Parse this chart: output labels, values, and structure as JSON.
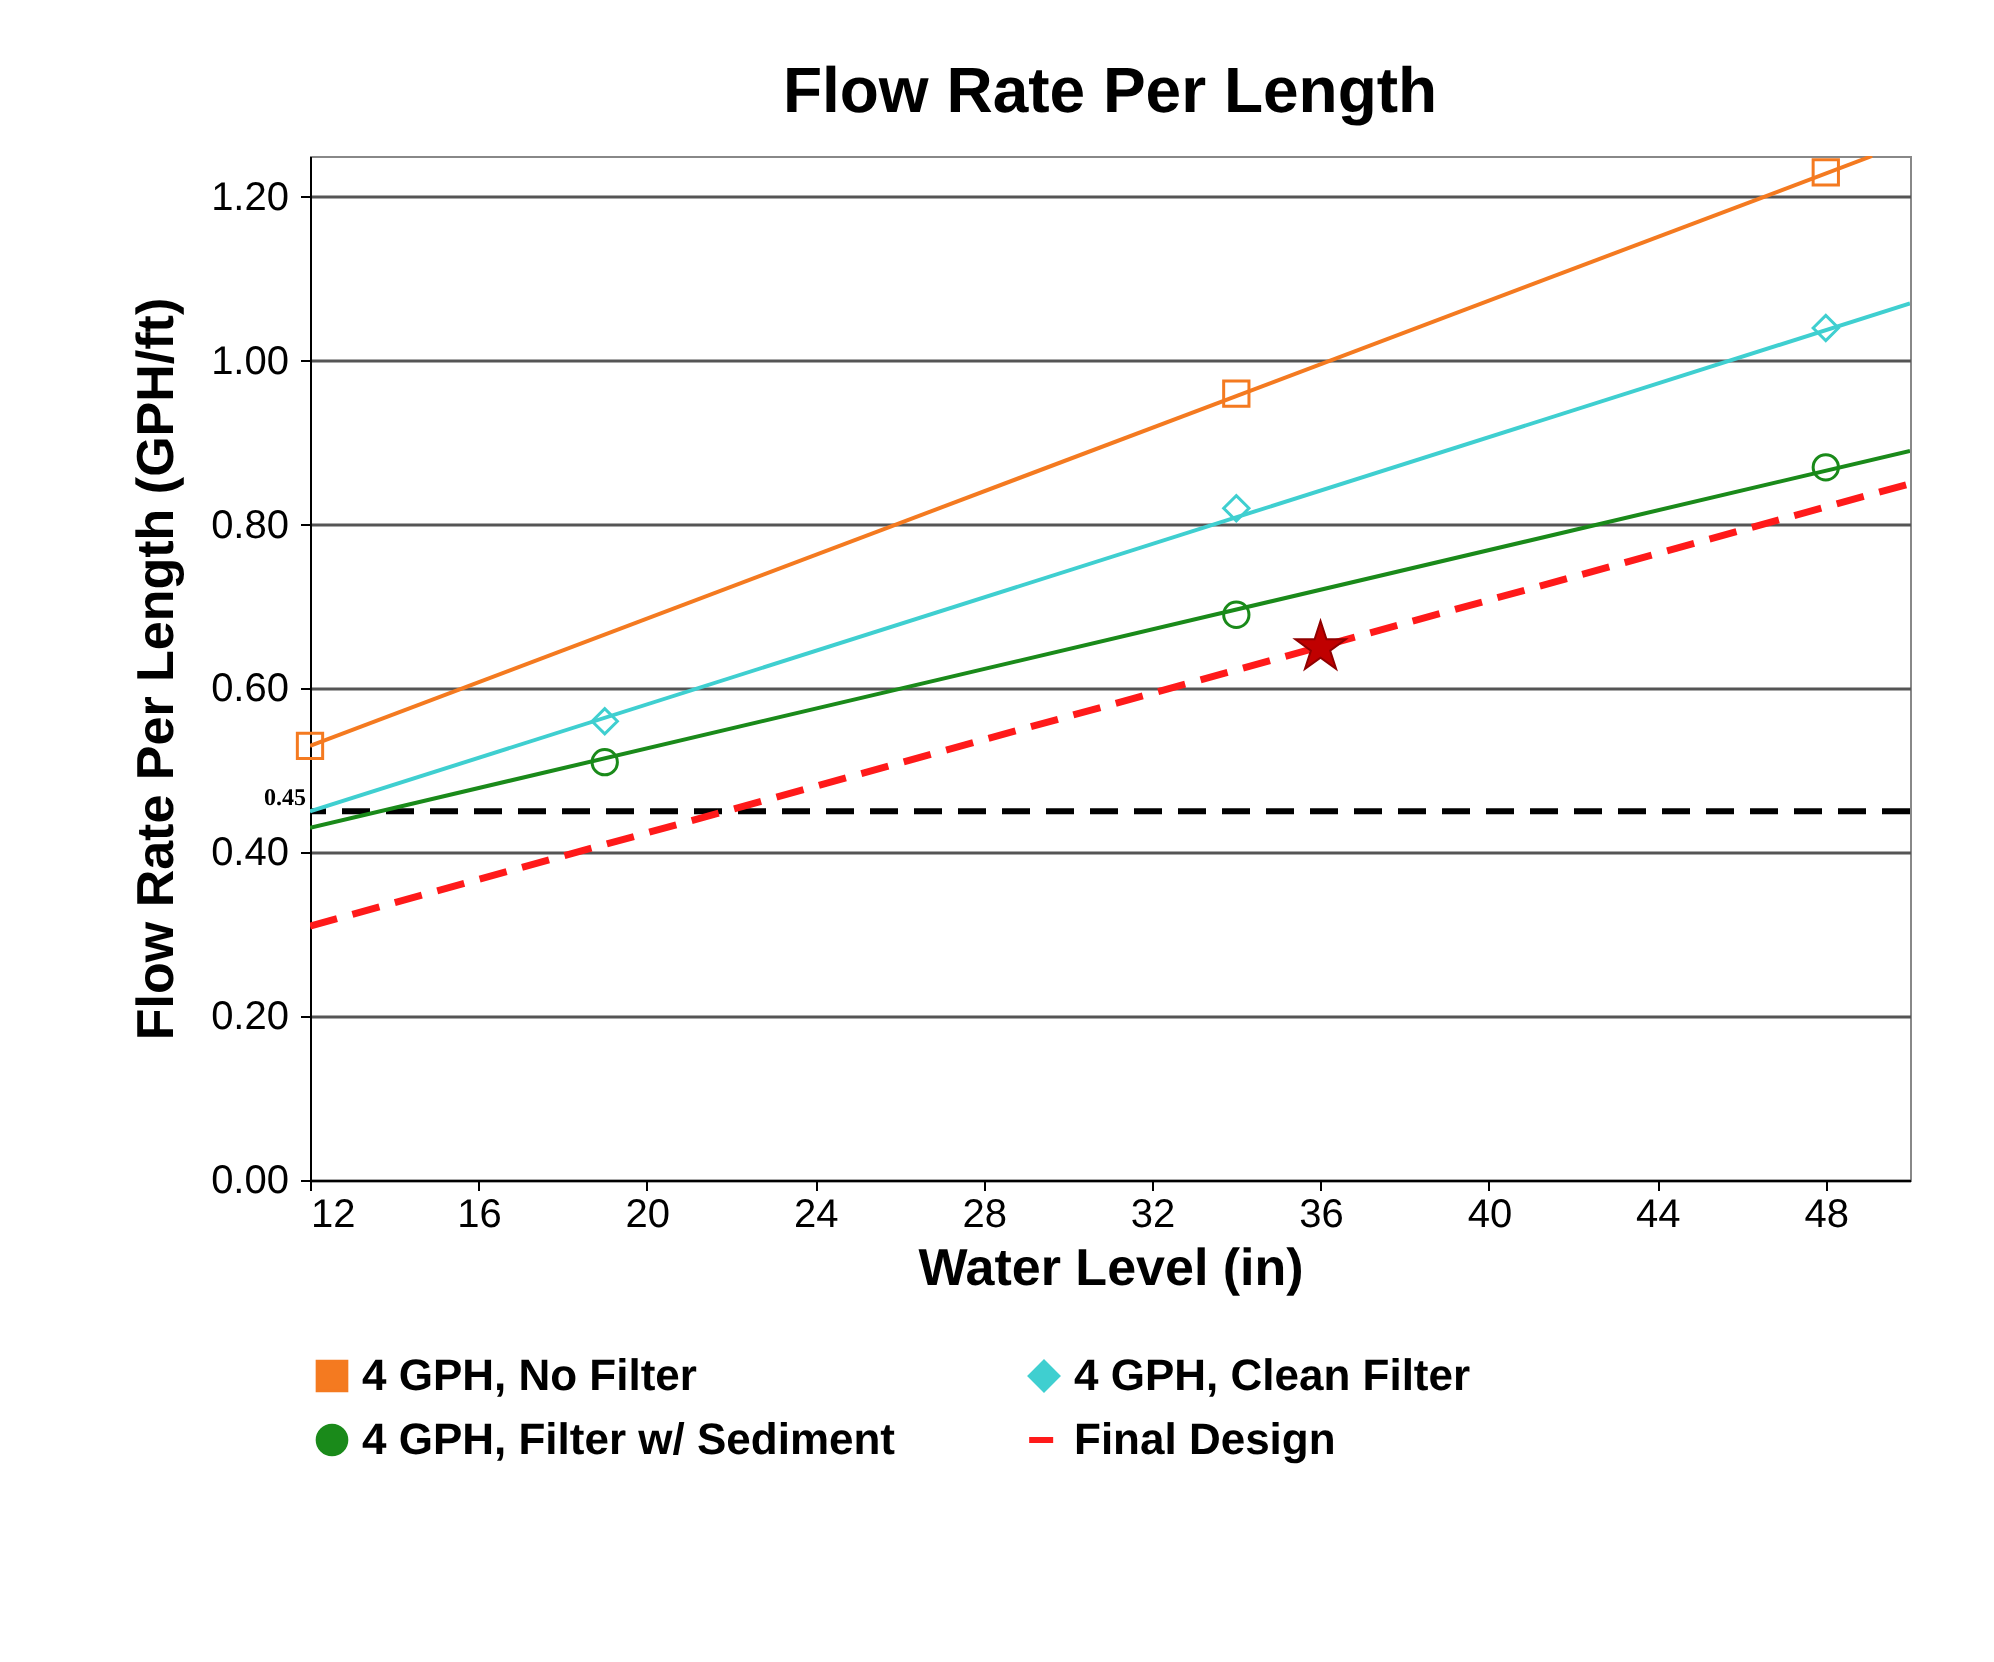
{
  "chart_data": {
    "type": "line",
    "title": "Flow Rate Per Length",
    "xlabel": "Water Level (in)",
    "ylabel": "Flow Rate Per Length (GPH/ft)",
    "xlim": [
      12,
      50
    ],
    "xticks": [
      12,
      16,
      20,
      24,
      28,
      32,
      36,
      40,
      44,
      48
    ],
    "ylim": [
      0,
      1.25
    ],
    "yticks": [
      {
        "value": 0,
        "label": "0.00"
      },
      {
        "value": 0.2,
        "label": "0.20"
      },
      {
        "value": 0.4,
        "label": "0.40"
      },
      {
        "value": 0.6,
        "label": "0.60"
      },
      {
        "value": 0.8,
        "label": "0.80"
      },
      {
        "value": 1.0,
        "label": "1.00"
      },
      {
        "value": 1.2,
        "label": "1.20"
      }
    ],
    "grid": "y",
    "legend": "bottom",
    "ref_lines": [
      {
        "axis": "y",
        "value": 0.45,
        "label": "0.45",
        "color": "#000000",
        "line_style": "dashed"
      }
    ],
    "series": [
      {
        "name": "4 GPH, No Filter",
        "type": "scatter",
        "marker": "square",
        "color": "#f47a20",
        "x": [
          12,
          34,
          48
        ],
        "values": [
          0.53,
          0.96,
          1.23
        ]
      },
      {
        "color": "#f47a20",
        "x": [
          12,
          49.1
        ],
        "values": [
          0.53,
          1.25
        ]
      },
      {
        "name": "4 GPH, Clean Filter",
        "type": "scatter",
        "marker": "diamond",
        "color": "#3fcfd0",
        "x": [
          19,
          34,
          48
        ],
        "values": [
          0.56,
          0.82,
          1.04
        ]
      },
      {
        "color": "#3fcfd0",
        "x": [
          12,
          50
        ],
        "values": [
          0.45,
          1.07
        ]
      },
      {
        "name": "4 GPH, Filter w/ Sediment",
        "type": "scatter",
        "marker": "circle",
        "color": "#1a8a1a",
        "x": [
          19,
          34,
          48
        ],
        "values": [
          0.51,
          0.69,
          0.87
        ]
      },
      {
        "color": "#1a8a1a",
        "x": [
          12,
          50
        ],
        "values": [
          0.43,
          0.89
        ]
      },
      {
        "name": "Final Design",
        "line_style": "dashed",
        "color": "#ff1a1a",
        "x": [
          12,
          50
        ],
        "values": [
          0.31,
          0.85
        ]
      },
      {
        "type": "scatter",
        "marker": "star",
        "color": "#c00000",
        "x": [
          36
        ],
        "values": [
          0.65
        ]
      }
    ]
  }
}
